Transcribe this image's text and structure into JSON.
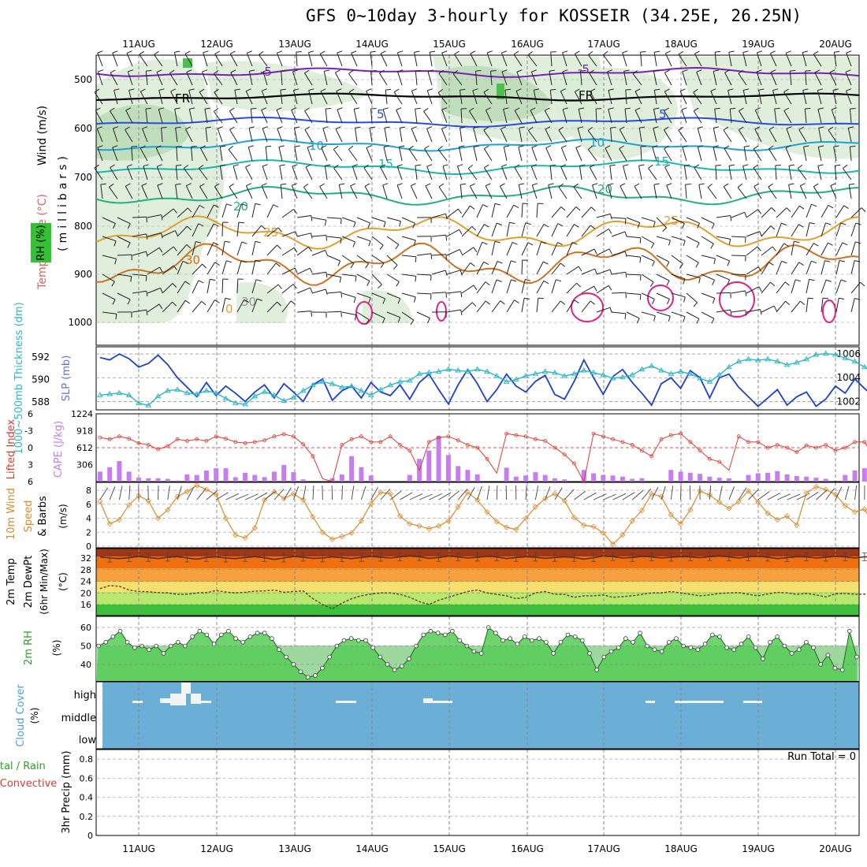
{
  "title": "GFS 0~10day 3-hourly for KOSSEIR (34.25E, 26.25N)",
  "date_labels": [
    "11AUG",
    "12AUG",
    "13AUG",
    "14AUG",
    "15AUG",
    "16AUG",
    "17AUG",
    "18AUG",
    "19AUG",
    "20AUG"
  ],
  "panels": {
    "upper": {
      "label_wind": "Wind (m/s)",
      "label_temp": "Temperature (°C)",
      "label_rh": "RH (%)",
      "label_units": "(millibars)",
      "yticks": [
        "500",
        "600",
        "700",
        "800",
        "900",
        "1000"
      ],
      "contour_labels": [
        "-5",
        "FR",
        "5",
        "10",
        "15",
        "20",
        "25",
        "30",
        "0",
        "30"
      ]
    },
    "slp": {
      "label_thickness": "1000~500mb Thickness (dm)",
      "label_slp": "SLP (mb)",
      "left_ticks": [
        "592",
        "590",
        "588"
      ],
      "right_ticks": [
        "1006",
        "1004",
        "1002"
      ],
      "color_slp": "#1c3fd4",
      "color_thickness": "#2bb8c4"
    },
    "cape": {
      "label_li": "Lifted Index",
      "label_cape": "CAPE (J/kg)",
      "left_ticks": [
        "6",
        "-3",
        "0",
        "3",
        "6"
      ],
      "right_ticks": [
        "1224",
        "918",
        "612",
        "306"
      ],
      "color_cape": "#c77cf0",
      "color_li": "#e03a30"
    },
    "wind10": {
      "label_a": "10m Wind",
      "label_b": "Speed",
      "label_c": "& Barbs",
      "units": "(m/s)",
      "yticks": [
        "8",
        "6",
        "4",
        "2",
        "0"
      ],
      "color": "#dc8a2a"
    },
    "temp2m": {
      "label_a": "2m Temp",
      "label_b": "2m DewPt",
      "label_c": "(6hr Min/Max)",
      "units": "(°C)",
      "yticks": [
        "32",
        "28",
        "24",
        "20",
        "16"
      ]
    },
    "rh2m": {
      "label": "2m RH",
      "units": "(%)",
      "yticks": [
        "60",
        "50",
        "40"
      ]
    },
    "cloud": {
      "label": "Cloud Cover",
      "units": "(%)",
      "levels": [
        "high",
        "middle",
        "low"
      ]
    },
    "precip": {
      "label_a": "Total / Rain",
      "label_b": "Convective",
      "label_c": "3hr Precip (mm)",
      "yticks": [
        "0.8",
        "0.6",
        "0.4",
        "0.2",
        "0"
      ],
      "run_total": "Run Total = 0"
    }
  },
  "chart_data": [
    {
      "type": "line",
      "panel": "sea level pressure / thickness",
      "x_unit": "3-hourly steps from 10 Aug 12Z",
      "series": [
        {
          "name": "SLP (mb)",
          "values": [
            1005.7,
            1005.5,
            1006.0,
            1005.6,
            1004.9,
            1005.2,
            1005.9,
            1005.1,
            1004.0,
            1003.2,
            1002.4,
            1003.6,
            1002.5,
            1003.3,
            1002.7,
            1002.0,
            1002.8,
            1003.4,
            1002.3,
            1003.5,
            1002.8,
            1002.0,
            1003.4,
            1003.9,
            1002.1,
            1002.9,
            1003.3,
            1002.3,
            1003.6,
            1002.8,
            1002.5,
            1003.4,
            1002.2,
            1003.6,
            1004.3,
            1003.0,
            1001.8,
            1003.4,
            1004.7,
            1003.5,
            1002.0,
            1003.0,
            1004.3,
            1003.3,
            1002.8,
            1003.7,
            1004.2,
            1002.6,
            1002.2,
            1003.7,
            1005.5,
            1004.0,
            1002.6,
            1004.1,
            1004.7,
            1003.6,
            1002.7,
            1001.7,
            1003.5,
            1004.0,
            1003.1,
            1004.6,
            1004.0,
            1002.3,
            1004.0,
            1004.3,
            1003.2,
            1002.4,
            1001.6,
            1002.3,
            1003.0,
            1001.7,
            1002.4,
            1002.8,
            1001.6,
            1002.2,
            1003.3,
            1002.7,
            1003.9,
            1003.1,
            1002.4,
            1002.9,
            1003.6,
            1002.2,
            1002.4,
            1003.8,
            1003.6,
            1002.0
          ]
        },
        {
          "name": "1000~500mb Thickness (dm)",
          "values": [
            588.6,
            588.7,
            588.8,
            588.6,
            587.9,
            587.7,
            588.5,
            589.0,
            589.1,
            588.8,
            588.7,
            589.0,
            588.8,
            588.3,
            587.9,
            587.8,
            588.5,
            588.9,
            588.6,
            588.1,
            588.4,
            589.0,
            589.5,
            589.8,
            589.6,
            589.3,
            589.4,
            589.0,
            588.6,
            589.1,
            589.5,
            589.8,
            589.9,
            590.5,
            590.6,
            590.7,
            590.9,
            590.8,
            590.7,
            590.9,
            590.7,
            590.3,
            589.8,
            590.0,
            590.3,
            590.5,
            590.7,
            590.6,
            590.3,
            590.5,
            590.8,
            590.6,
            590.4,
            590.1,
            590.2,
            590.4,
            590.9,
            591.2,
            590.8,
            590.5,
            590.7,
            590.5,
            590.1,
            589.8,
            590.4,
            591.1,
            591.6,
            591.8,
            591.7,
            591.8,
            591.6,
            591.3,
            591.5,
            591.8,
            592.2,
            592.3,
            592.2,
            591.9,
            591.6,
            591.1,
            590.6,
            590.9,
            591.3,
            591.4,
            591.7,
            591.5,
            591.2,
            590.9,
            590.5,
            589.9,
            589.2,
            588.8
          ]
        }
      ]
    },
    {
      "type": "bar",
      "panel": "CAPE / Lifted Index",
      "series": [
        {
          "name": "CAPE (J/kg)",
          "values": [
            180,
            260,
            370,
            180,
            70,
            60,
            60,
            50,
            20,
            130,
            120,
            200,
            240,
            240,
            80,
            160,
            120,
            80,
            180,
            300,
            170,
            40,
            0,
            0,
            60,
            130,
            460,
            260,
            110,
            0,
            0,
            0,
            120,
            410,
            560,
            820,
            480,
            280,
            210,
            130,
            0,
            0,
            250,
            90,
            110,
            170,
            120,
            60,
            40,
            0,
            210,
            150,
            120,
            110,
            90,
            50,
            60,
            0,
            0,
            210,
            180,
            160,
            140,
            90,
            70,
            60,
            0,
            120,
            150,
            160,
            190,
            130,
            100,
            90,
            70,
            50,
            0,
            120,
            200,
            240,
            110,
            0,
            120,
            0,
            100
          ]
        },
        {
          "name": "Lifted Index",
          "values": [
            -1.8,
            -1.5,
            -2.0,
            -1.6,
            -0.8,
            -0.5,
            0.3,
            -0.3,
            -1.5,
            -1.2,
            -1.5,
            -1.2,
            -2.0,
            -1.6,
            -1.0,
            -0.8,
            -1.0,
            -1.3,
            -2.0,
            -2.4,
            -2.0,
            -0.6,
            1.5,
            5.5,
            6.0,
            -0.5,
            -1.5,
            -2.0,
            -1.0,
            -1.0,
            -2.0,
            -0.5,
            0.5,
            4.0,
            -1.0,
            -1.8,
            -2.0,
            -1.3,
            -0.5,
            0.0,
            2.0,
            4.5,
            -2.5,
            -2.2,
            -2.0,
            -1.5,
            -1.2,
            0.0,
            1.2,
            2.8,
            6.0,
            -2.5,
            -2.0,
            -1.5,
            -1.0,
            -0.5,
            0.5,
            1.5,
            -1.5,
            -2.2,
            -2.5,
            -1.0,
            0.5,
            2.0,
            2.5,
            4.0,
            -2.0,
            -1.0,
            -1.0,
            0.0,
            -0.5,
            0.0,
            0.8,
            -0.4,
            0.0,
            -0.5,
            0.5,
            0.0,
            -1.0,
            -1.0,
            1.5,
            3.0,
            0.0,
            -1.0,
            -0.8,
            0.0,
            -1.5,
            -0.5,
            0.0,
            4.0,
            -0.8,
            -0.5
          ]
        }
      ]
    },
    {
      "type": "line",
      "panel": "10m Wind Speed",
      "series": [
        {
          "name": "10m Wind Speed (m/s)",
          "values": [
            6.4,
            3.2,
            3.8,
            5.9,
            7.2,
            6.5,
            4.0,
            5.2,
            7.1,
            7.8,
            8.7,
            8.1,
            7.4,
            4.0,
            1.6,
            1.2,
            2.6,
            6.6,
            7.8,
            6.8,
            7.5,
            6.6,
            4.2,
            2.0,
            1.0,
            1.4,
            1.9,
            3.6,
            6.1,
            7.7,
            7.5,
            4.3,
            3.2,
            2.9,
            2.5,
            2.9,
            3.6,
            5.6,
            7.7,
            6.6,
            4.9,
            3.5,
            2.7,
            2.4,
            4.0,
            5.6,
            6.8,
            7.5,
            6.5,
            4.1,
            3.0,
            2.8,
            1.9,
            0.3,
            1.6,
            3.6,
            5.1,
            7.5,
            7.1,
            4.5,
            3.2,
            5.2,
            7.9,
            7.3,
            6.3,
            5.4,
            6.4,
            7.9,
            6.3,
            4.7,
            3.8,
            4.3,
            3.0,
            7.6,
            8.5,
            8.1,
            7.4,
            5.8,
            4.9,
            5.3,
            3.0,
            2.4,
            1.9,
            1.5,
            4.0,
            7.8,
            8.1,
            7.5,
            4.2,
            2.3,
            1.3,
            1.7,
            6.9,
            6.5
          ]
        }
      ]
    },
    {
      "type": "line",
      "panel": "2m Temp / 2m DewPt",
      "series": [
        {
          "name": "2m Temp (°C)",
          "values": [
            32.4,
            32.0,
            31.8,
            32.1,
            32.6,
            32.2,
            31.8,
            32.3,
            32.5,
            32.0,
            31.6,
            32.2,
            32.4,
            32.0,
            31.8,
            32.2,
            32.5,
            32.1,
            31.5,
            32.0,
            32.6,
            32.3,
            31.9,
            32.0,
            32.4,
            32.1,
            31.8,
            32.2,
            32.6,
            32.3,
            32.0,
            32.4,
            32.7,
            32.5,
            31.9,
            32.2,
            32.7,
            32.4,
            32.0,
            32.3,
            32.6,
            32.4,
            31.8,
            32.2,
            32.5,
            32.3,
            31.9,
            32.2,
            32.4,
            32.2,
            31.6,
            32.1,
            32.7,
            32.5,
            32.0,
            32.2,
            32.6,
            32.4,
            32.0,
            32.3,
            32.5,
            32.4,
            32.1,
            32.5,
            32.7,
            32.4,
            32.0,
            32.4,
            32.6,
            32.3,
            31.8,
            32.1,
            32.5,
            32.4,
            32.0,
            32.3,
            32.6,
            32.4,
            32.0,
            32.4,
            32.5,
            32.3,
            31.8,
            32.3,
            32.6,
            32.4,
            31.9,
            32.4,
            32.6,
            32.2,
            31.0,
            32.3
          ]
        },
        {
          "name": "2m DewPt (°C)",
          "values": [
            21.5,
            22.5,
            22.3,
            21.0,
            20.5,
            20.4,
            20.1,
            20.0,
            19.5,
            19.5,
            20.0,
            20.1,
            20.8,
            20.3,
            20.0,
            20.2,
            20.6,
            20.7,
            21.0,
            20.2,
            20.5,
            20.7,
            18.0,
            16.0,
            14.5,
            16.5,
            18.0,
            19.0,
            19.6,
            20.0,
            20.0,
            19.5,
            18.5,
            17.0,
            16.0,
            17.5,
            18.5,
            19.5,
            20.5,
            21.0,
            20.0,
            19.5,
            19.0,
            18.0,
            18.5,
            20.0,
            20.5,
            19.5,
            19.5,
            18.5,
            19.0,
            19.0,
            19.3,
            18.5,
            18.7,
            19.0,
            19.5,
            20.0,
            20.0,
            20.5,
            20.0,
            19.5,
            19.0,
            19.3,
            19.8,
            20.0,
            20.1,
            19.5,
            19.0,
            19.6,
            20.2,
            20.0,
            19.5,
            19.8,
            19.3,
            18.6,
            19.7,
            19.8,
            19.5,
            19.6,
            19.0,
            18.9,
            18.6,
            19.7,
            19.5,
            19.5,
            19.0,
            18.5,
            18.0,
            17.0,
            16.0,
            18.0
          ]
        }
      ]
    },
    {
      "type": "area",
      "panel": "2m RH",
      "series": [
        {
          "name": "2m RH (%)",
          "values": [
            50,
            52,
            55,
            58,
            52,
            49,
            50,
            48,
            50,
            46,
            50,
            52,
            50,
            55,
            58,
            56,
            51,
            56,
            58,
            54,
            52,
            55,
            57,
            57,
            54,
            48,
            44,
            40,
            36,
            33,
            34,
            38,
            44,
            50,
            53,
            54,
            53,
            53,
            49,
            44,
            40,
            37,
            39,
            43,
            50,
            56,
            58,
            57,
            56,
            58,
            53,
            50,
            47,
            46,
            60,
            57,
            53,
            54,
            51,
            55,
            53,
            54,
            52,
            46,
            52,
            56,
            55,
            53,
            46,
            37,
            44,
            47,
            49,
            54,
            52,
            57,
            50,
            48,
            47,
            52,
            54,
            50,
            49,
            48,
            51,
            56,
            55,
            49,
            48,
            51,
            55,
            49,
            43,
            52,
            55,
            50,
            46,
            48,
            52,
            49,
            40,
            45,
            38,
            37,
            58,
            44
          ]
        }
      ]
    },
    {
      "type": "bar",
      "panel": "3hr Precip",
      "ylim": [
        0,
        0.9
      ],
      "series": [
        {
          "name": "Total / Rain",
          "values": []
        },
        {
          "name": "Convective",
          "values": []
        }
      ]
    }
  ]
}
